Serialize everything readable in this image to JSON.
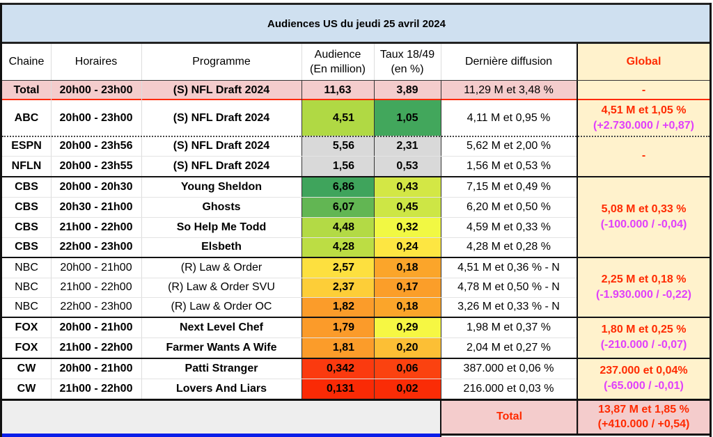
{
  "title": "Audiences US du jeudi 25 avril 2024",
  "headers": {
    "chaine": "Chaine",
    "horaires": "Horaires",
    "programme": "Programme",
    "audience_line1": "Audience",
    "audience_line2": "(En million)",
    "taux_line1": "Taux 18/49",
    "taux_line2": "(en %)",
    "derniere": "Dernière diffusion",
    "global": "Global"
  },
  "total_row": {
    "chaine": "Total",
    "horaires": "20h00 - 23h00",
    "programme": "(S) NFL Draft 2024",
    "audience": "11,63",
    "taux": "3,89",
    "derniere": "11,29 M et 3,48 %",
    "global": "-"
  },
  "rows": [
    {
      "chaine": "ABC",
      "horaires": "20h00 - 23h00",
      "programme": "(S) NFL Draft 2024",
      "audience": "4,51",
      "taux": "1,05",
      "derniere": "4,11 M et 0,95 %",
      "aud_color": "#b0d944",
      "taux_color": "#42a75c"
    },
    {
      "chaine": "ESPN",
      "horaires": "20h00 - 23h56",
      "programme": "(S) NFL Draft 2024",
      "audience": "5,56",
      "taux": "2,31",
      "derniere": "5,62 M et 2,00 %",
      "aud_color": "#d9d9d9",
      "taux_color": "#d9d9d9"
    },
    {
      "chaine": "NFLN",
      "horaires": "20h00 - 23h55",
      "programme": "(S) NFL Draft 2024",
      "audience": "1,56",
      "taux": "0,53",
      "derniere": "1,56 M et 0,53 %",
      "aud_color": "#d9d9d9",
      "taux_color": "#d9d9d9"
    },
    {
      "chaine": "CBS",
      "horaires": "20h00 - 20h30",
      "programme": "Young Sheldon",
      "audience": "6,86",
      "taux": "0,43",
      "derniere": "7,15 M et 0,49 %",
      "aud_color": "#3fa45c",
      "taux_color": "#d3e745"
    },
    {
      "chaine": "CBS",
      "horaires": "20h30 - 21h00",
      "programme": "Ghosts",
      "audience": "6,07",
      "taux": "0,45",
      "derniere": "6,20 M et 0,50 %",
      "aud_color": "#62b653",
      "taux_color": "#cde645"
    },
    {
      "chaine": "CBS",
      "horaires": "21h00 - 22h00",
      "programme": "So Help Me Todd",
      "audience": "4,48",
      "taux": "0,32",
      "derniere": "4,59 M et 0,33 %",
      "aud_color": "#b3da45",
      "taux_color": "#f1f843"
    },
    {
      "chaine": "CBS",
      "horaires": "22h00 - 23h00",
      "programme": "Elsbeth",
      "audience": "4,28",
      "taux": "0,24",
      "derniere": "4,28 M et 0,28 %",
      "aud_color": "#bcdd44",
      "taux_color": "#fde642"
    },
    {
      "chaine": "NBC",
      "horaires": "20h00 - 21h00",
      "programme": "(R) Law & Order",
      "audience": "2,57",
      "taux": "0,18",
      "derniere": "4,51 M et 0,36 % - N",
      "aud_color": "#fde03f",
      "taux_color": "#fba52a"
    },
    {
      "chaine": "NBC",
      "horaires": "21h00 - 22h00",
      "programme": "(R) Law & Order SVU",
      "audience": "2,37",
      "taux": "0,17",
      "derniere": "4,78 M et 0,50 % - N",
      "aud_color": "#fdce38",
      "taux_color": "#fb9e29"
    },
    {
      "chaine": "NBC",
      "horaires": "22h00 - 23h00",
      "programme": "(R) Law & Order OC",
      "audience": "1,82",
      "taux": "0,18",
      "derniere": "3,26 M et 0,33 % - N",
      "aud_color": "#fb9c2a",
      "taux_color": "#fba52a"
    },
    {
      "chaine": "FOX",
      "horaires": "20h00 - 21h00",
      "programme": "Next Level Chef",
      "audience": "1,79",
      "taux": "0,29",
      "derniere": "1,98 M et 0,37 %",
      "aud_color": "#fb9b2a",
      "taux_color": "#f6f743"
    },
    {
      "chaine": "FOX",
      "horaires": "21h00 - 22h00",
      "programme": "Farmer Wants A Wife",
      "audience": "1,81",
      "taux": "0,20",
      "derniere": "2,04 M et 0,27 %",
      "aud_color": "#fb9c2a",
      "taux_color": "#fcbf35"
    },
    {
      "chaine": "CW",
      "horaires": "20h00 - 21h00",
      "programme": "Patti Stranger",
      "audience": "0,342",
      "taux": "0,06",
      "derniere": "387.000 et 0,06 %",
      "aud_color": "#fb3a0f",
      "taux_color": "#fb4210"
    },
    {
      "chaine": "CW",
      "horaires": "21h00 - 22h00",
      "programme": "Lovers And Liars",
      "audience": "0,131",
      "taux": "0,02",
      "derniere": "216.000 et 0,03 %",
      "aud_color": "#fa2a05",
      "taux_color": "#fa2c06"
    }
  ],
  "globals": [
    {
      "main": "4,51 M et 1,05 %",
      "delta": "(+2.730.000 / +0,87)"
    },
    {
      "main": "-",
      "delta": ""
    },
    {
      "main": "5,08 M et 0,33 %",
      "delta": "(-100.000 / -0,04)"
    },
    {
      "main": "2,25 M et 0,18 %",
      "delta": "(-1.930.000 / -0,22)"
    },
    {
      "main": "1,80 M et 0,25 %",
      "delta": "(-210.000 / -0,07)"
    },
    {
      "main": "237.000 et 0,04%",
      "delta": "(-65.000 / -0,01)"
    }
  ],
  "grand_total": {
    "label": "Total",
    "main": "13,87 M et 1,85 %",
    "delta": "(+410.000 / +0,54)"
  },
  "colors": {
    "title_bg": "#cfe0f0",
    "total_bg": "#f4cccc",
    "global_bg": "#fff2cc",
    "accent_red": "#ff2a00",
    "delta_magenta": "#e040fb",
    "footer_grey": "#eeeeee",
    "footer_blue": "#0a1ee8"
  }
}
